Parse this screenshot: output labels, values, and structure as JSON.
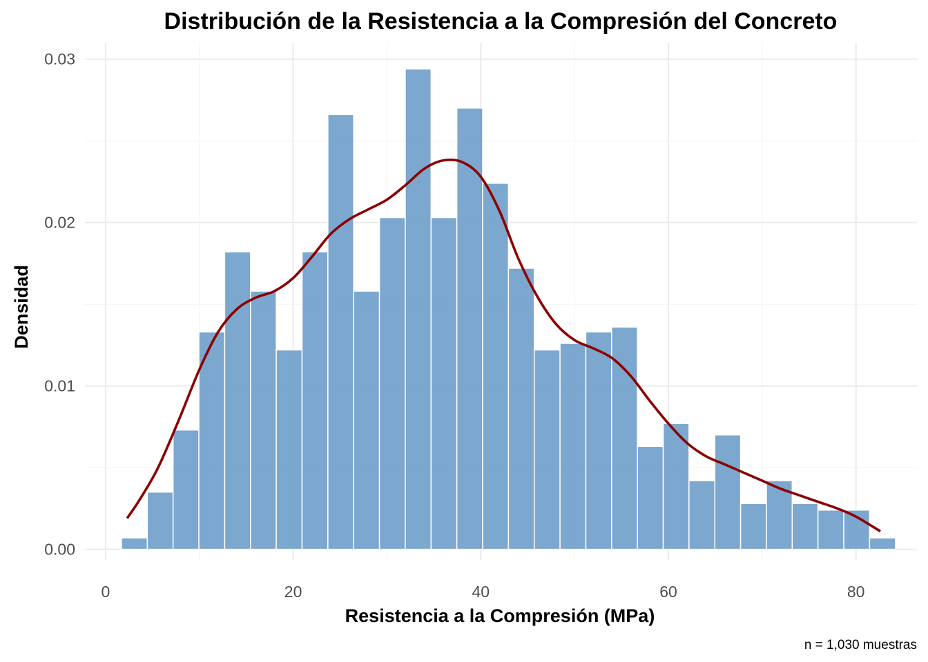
{
  "chart_data": {
    "type": "bar",
    "title": "Distribución de la Resistencia a la Compresión del Concreto",
    "xlabel": "Resistencia a la Compresión (MPa)",
    "ylabel": "Densidad",
    "caption": "n = 1,030 muestras",
    "xlim": [
      -2.2,
      86.5
    ],
    "ylim": [
      -0.00065,
      0.031
    ],
    "x_ticks": [
      0,
      20,
      40,
      60,
      80
    ],
    "x_tick_labels": [
      "0",
      "20",
      "40",
      "60",
      "80"
    ],
    "y_ticks": [
      0.0,
      0.01,
      0.02,
      0.03
    ],
    "y_tick_labels": [
      "0.00",
      "0.01",
      "0.02",
      "0.03"
    ],
    "grid": true,
    "bin_width": 2.75,
    "bins": [
      {
        "x0": 1.7,
        "x1": 4.45,
        "density": 0.0007
      },
      {
        "x0": 4.45,
        "x1": 7.2,
        "density": 0.0035
      },
      {
        "x0": 7.2,
        "x1": 9.95,
        "density": 0.0073
      },
      {
        "x0": 9.95,
        "x1": 12.7,
        "density": 0.0133
      },
      {
        "x0": 12.7,
        "x1": 15.45,
        "density": 0.0182
      },
      {
        "x0": 15.45,
        "x1": 18.2,
        "density": 0.0158
      },
      {
        "x0": 18.2,
        "x1": 20.95,
        "density": 0.0122
      },
      {
        "x0": 20.95,
        "x1": 23.7,
        "density": 0.0182
      },
      {
        "x0": 23.7,
        "x1": 26.45,
        "density": 0.0266
      },
      {
        "x0": 26.45,
        "x1": 29.2,
        "density": 0.0158
      },
      {
        "x0": 29.2,
        "x1": 31.95,
        "density": 0.0203
      },
      {
        "x0": 31.95,
        "x1": 34.7,
        "density": 0.0294
      },
      {
        "x0": 34.7,
        "x1": 37.45,
        "density": 0.0203
      },
      {
        "x0": 37.45,
        "x1": 40.2,
        "density": 0.027
      },
      {
        "x0": 40.2,
        "x1": 42.95,
        "density": 0.0224
      },
      {
        "x0": 42.95,
        "x1": 45.7,
        "density": 0.0172
      },
      {
        "x0": 45.7,
        "x1": 48.45,
        "density": 0.0122
      },
      {
        "x0": 48.45,
        "x1": 51.2,
        "density": 0.0126
      },
      {
        "x0": 51.2,
        "x1": 53.95,
        "density": 0.0133
      },
      {
        "x0": 53.95,
        "x1": 56.7,
        "density": 0.0136
      },
      {
        "x0": 56.7,
        "x1": 59.45,
        "density": 0.0063
      },
      {
        "x0": 59.45,
        "x1": 62.2,
        "density": 0.0077
      },
      {
        "x0": 62.2,
        "x1": 64.95,
        "density": 0.0042
      },
      {
        "x0": 64.95,
        "x1": 67.7,
        "density": 0.007
      },
      {
        "x0": 67.7,
        "x1": 70.45,
        "density": 0.0028
      },
      {
        "x0": 70.45,
        "x1": 73.2,
        "density": 0.0042
      },
      {
        "x0": 73.2,
        "x1": 75.95,
        "density": 0.0028
      },
      {
        "x0": 75.95,
        "x1": 78.7,
        "density": 0.0024
      },
      {
        "x0": 78.7,
        "x1": 81.45,
        "density": 0.0024
      },
      {
        "x0": 81.45,
        "x1": 84.2,
        "density": 0.0007
      }
    ],
    "density_curve": {
      "x": [
        2.3,
        3.7,
        5.6,
        7.8,
        10.0,
        12.0,
        14.0,
        16.0,
        18.0,
        20.0,
        22.0,
        24.0,
        26.0,
        28.0,
        30.0,
        32.0,
        34.0,
        36.0,
        38.0,
        40.0,
        42.0,
        44.0,
        46.0,
        48.0,
        50.0,
        52.0,
        54.0,
        56.0,
        58.0,
        60.0,
        62.0,
        64.0,
        66.0,
        68.0,
        70.0,
        72.0,
        74.0,
        76.0,
        78.0,
        80.0,
        82.6
      ],
      "y": [
        0.0019,
        0.0031,
        0.005,
        0.0079,
        0.011,
        0.0133,
        0.0147,
        0.0154,
        0.0158,
        0.0166,
        0.0179,
        0.0193,
        0.0202,
        0.0208,
        0.0214,
        0.0223,
        0.0233,
        0.0238,
        0.0237,
        0.0228,
        0.0207,
        0.0178,
        0.0155,
        0.0138,
        0.0128,
        0.0123,
        0.0117,
        0.0106,
        0.0091,
        0.0077,
        0.0065,
        0.0057,
        0.0052,
        0.0047,
        0.0042,
        0.0037,
        0.0033,
        0.0029,
        0.0025,
        0.002,
        0.0011
      ]
    },
    "colors": {
      "bar_fill": "#6a9bc7",
      "bar_stroke": "#ffffff",
      "curve": "#8b0000",
      "grid_major": "#ebebeb",
      "grid_minor": "#f4f4f4"
    }
  }
}
